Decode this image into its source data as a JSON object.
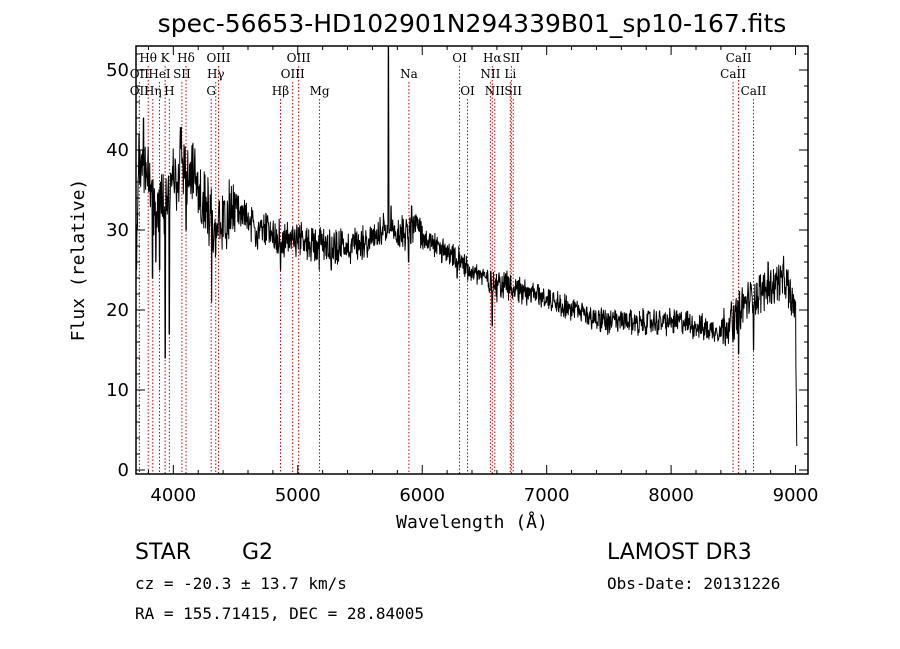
{
  "chart_data": {
    "type": "line",
    "title": "spec-56653-HD102901N294339B01_sp10-167.fits",
    "xlabel": "Wavelength (Å)",
    "ylabel": "Flux (relative)",
    "xlim": [
      3700,
      9100
    ],
    "ylim": [
      -0.5,
      53
    ],
    "xticks": [
      4000,
      5000,
      6000,
      7000,
      8000,
      9000
    ],
    "xticklabels": [
      "4000",
      "5000",
      "6000",
      "7000",
      "8000",
      "9000"
    ],
    "yticks": [
      0,
      10,
      20,
      30,
      40,
      50
    ],
    "yticklabels": [
      "0",
      "10",
      "20",
      "30",
      "40",
      "50"
    ],
    "grid": false,
    "line_color": "#000000",
    "marker_color": "#cc0000",
    "spectrum_anchors": [
      [
        3700,
        24
      ],
      [
        3720,
        36
      ],
      [
        3760,
        38
      ],
      [
        3800,
        37
      ],
      [
        3840,
        34
      ],
      [
        3880,
        33
      ],
      [
        3900,
        34
      ],
      [
        3940,
        33
      ],
      [
        3980,
        36
      ],
      [
        4000,
        37
      ],
      [
        4030,
        36
      ],
      [
        4060,
        39
      ],
      [
        4100,
        37
      ],
      [
        4150,
        37
      ],
      [
        4200,
        36
      ],
      [
        4250,
        33
      ],
      [
        4300,
        32
      ],
      [
        4350,
        30
      ],
      [
        4400,
        31
      ],
      [
        4450,
        32
      ],
      [
        4500,
        33
      ],
      [
        4550,
        32
      ],
      [
        4600,
        31
      ],
      [
        4650,
        30
      ],
      [
        4700,
        30
      ],
      [
        4750,
        30
      ],
      [
        4800,
        29.5
      ],
      [
        4860,
        29
      ],
      [
        4900,
        28.5
      ],
      [
        4950,
        29
      ],
      [
        5000,
        29
      ],
      [
        5050,
        28.5
      ],
      [
        5100,
        28.5
      ],
      [
        5200,
        28.5
      ],
      [
        5300,
        28
      ],
      [
        5400,
        28
      ],
      [
        5500,
        28.5
      ],
      [
        5600,
        29
      ],
      [
        5700,
        29.5
      ],
      [
        5800,
        29.5
      ],
      [
        5900,
        30
      ],
      [
        5950,
        31
      ],
      [
        6000,
        29
      ],
      [
        6100,
        28
      ],
      [
        6200,
        27
      ],
      [
        6300,
        26
      ],
      [
        6400,
        25
      ],
      [
        6500,
        24
      ],
      [
        6600,
        23.5
      ],
      [
        6700,
        23
      ],
      [
        6800,
        22.5
      ],
      [
        6900,
        22
      ],
      [
        7000,
        21.5
      ],
      [
        7100,
        21
      ],
      [
        7200,
        20
      ],
      [
        7300,
        19.5
      ],
      [
        7400,
        19
      ],
      [
        7500,
        18.5
      ],
      [
        7600,
        18.5
      ],
      [
        7700,
        18.5
      ],
      [
        7800,
        18.5
      ],
      [
        7900,
        18.5
      ],
      [
        8000,
        18.5
      ],
      [
        8100,
        18.5
      ],
      [
        8200,
        18
      ],
      [
        8300,
        17.5
      ],
      [
        8400,
        17.5
      ],
      [
        8500,
        19
      ],
      [
        8600,
        21
      ],
      [
        8700,
        22
      ],
      [
        8800,
        23
      ],
      [
        8900,
        24
      ],
      [
        8950,
        22
      ],
      [
        9000,
        20
      ],
      [
        9010,
        3
      ]
    ],
    "spectrum_features": [
      [
        3724,
        42
      ],
      [
        3760,
        44
      ],
      [
        3833,
        24
      ],
      [
        3860,
        26
      ],
      [
        3889,
        25
      ],
      [
        3934,
        14
      ],
      [
        3968,
        17
      ],
      [
        4102,
        30
      ],
      [
        4226,
        31
      ],
      [
        4308,
        21
      ],
      [
        4341,
        27
      ],
      [
        4383,
        30
      ],
      [
        4861,
        25
      ],
      [
        5172,
        25
      ],
      [
        5269,
        25
      ],
      [
        5728,
        53
      ],
      [
        5740,
        30
      ],
      [
        5750,
        33
      ],
      [
        5890,
        26
      ],
      [
        5915,
        33
      ],
      [
        6280,
        24
      ],
      [
        6563,
        18
      ],
      [
        6600,
        21
      ],
      [
        8498,
        16
      ],
      [
        8542,
        14.5
      ],
      [
        8662,
        15
      ],
      [
        8700,
        19.5
      ],
      [
        8780,
        26
      ],
      [
        8940,
        25
      ]
    ],
    "line_markers": [
      {
        "label": "Hθ",
        "wavelength": 3798,
        "row": 1
      },
      {
        "label": "OII",
        "wavelength": 3727,
        "row": 2
      },
      {
        "label": "OII",
        "wavelength": 3727,
        "row": 3
      },
      {
        "label": "Hη",
        "wavelength": 3835,
        "row": 3
      },
      {
        "label": "K",
        "wavelength": 3934,
        "row": 1
      },
      {
        "label": "HeI",
        "wavelength": 3889,
        "row": 2
      },
      {
        "label": "H",
        "wavelength": 3968,
        "row": 3
      },
      {
        "label": "Hδ",
        "wavelength": 4102,
        "row": 1
      },
      {
        "label": "SII",
        "wavelength": 4069,
        "row": 2
      },
      {
        "label": "OIII",
        "wavelength": 4363,
        "row": 1
      },
      {
        "label": "Hγ",
        "wavelength": 4341,
        "row": 2
      },
      {
        "label": "G",
        "wavelength": 4304,
        "row": 3
      },
      {
        "label": "Hβ",
        "wavelength": 4861,
        "row": 3
      },
      {
        "label": "OIII",
        "wavelength": 5007,
        "row": 1
      },
      {
        "label": "OIII",
        "wavelength": 4959,
        "row": 2
      },
      {
        "label": "Mg",
        "wavelength": 5175,
        "row": 3
      },
      {
        "label": "Na",
        "wavelength": 5893,
        "row": 2
      },
      {
        "label": "OI",
        "wavelength": 6300,
        "row": 1
      },
      {
        "label": "OI",
        "wavelength": 6364,
        "row": 3
      },
      {
        "label": "Hα",
        "wavelength": 6563,
        "row": 1
      },
      {
        "label": "NII",
        "wavelength": 6548,
        "row": 2
      },
      {
        "label": "NII",
        "wavelength": 6583,
        "row": 3
      },
      {
        "label": "SII",
        "wavelength": 6716,
        "row": 1
      },
      {
        "label": "Li",
        "wavelength": 6708,
        "row": 2
      },
      {
        "label": "SII",
        "wavelength": 6731,
        "row": 3
      },
      {
        "label": "CaII",
        "wavelength": 8542,
        "row": 1
      },
      {
        "label": "CaII",
        "wavelength": 8498,
        "row": 2
      },
      {
        "label": "CaII",
        "wavelength": 8662,
        "row": 3
      }
    ]
  },
  "info": {
    "object_class": "STAR",
    "subclass": "G2",
    "survey": "LAMOST DR3",
    "redshift": "cz = -20.3 ± 13.7 km/s",
    "obs_date": "Obs-Date: 20131226",
    "coords": "RA = 155.71415, DEC =  28.84005"
  }
}
